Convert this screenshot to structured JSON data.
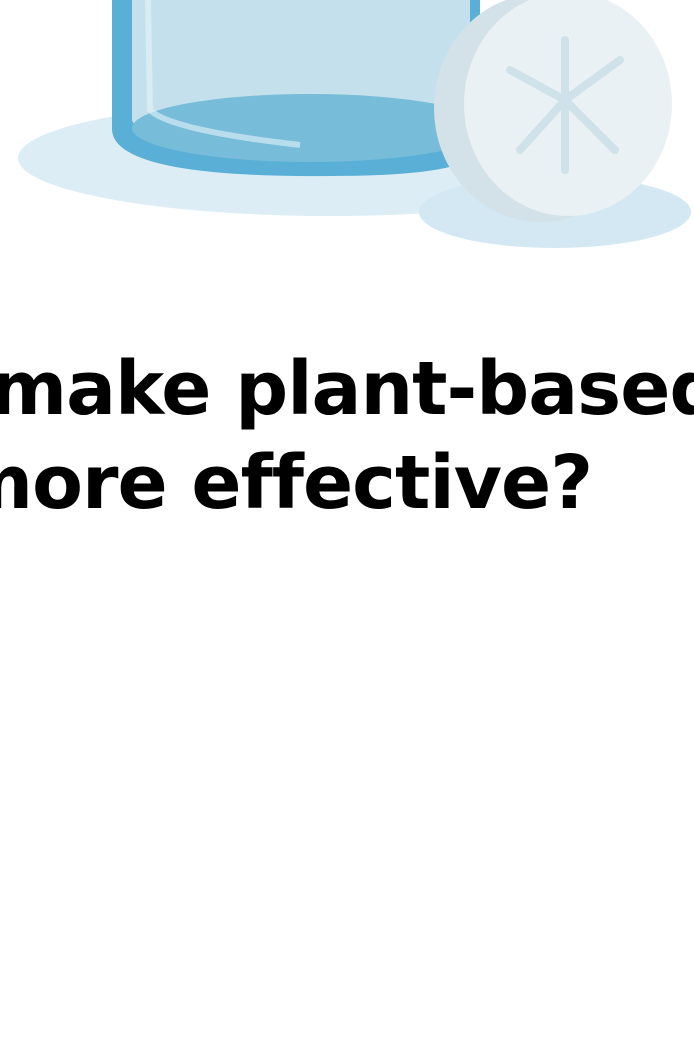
{
  "headline": {
    "lines": [
      "make plant-based",
      "more effective?"
    ]
  }
}
